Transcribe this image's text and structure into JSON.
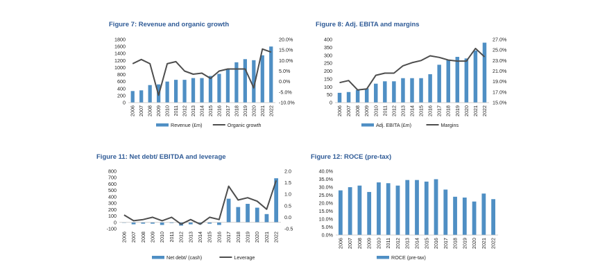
{
  "colors": {
    "bar": "#4f8fc4",
    "line": "#4d4d4d",
    "title": "#2e5a96",
    "axis": "#bfbfbf"
  },
  "chart_data": [
    {
      "type": "bar",
      "title": "Figure 7: Revenue and organic growth",
      "categories": [
        "2006",
        "2007",
        "2008",
        "2009",
        "2010",
        "2011",
        "2012",
        "2013",
        "2014",
        "2015",
        "2016",
        "2017",
        "2018",
        "2019",
        "2020",
        "2021",
        "2022"
      ],
      "series": [
        {
          "name": "Revenue (£m)",
          "type": "bar",
          "axis": "left",
          "values": [
            330,
            350,
            500,
            520,
            600,
            650,
            650,
            700,
            700,
            760,
            820,
            960,
            1150,
            1240,
            1210,
            1350,
            1600
          ]
        },
        {
          "name": "Organic growth",
          "type": "line",
          "axis": "right",
          "values": [
            8.5,
            10.5,
            8.5,
            -6.5,
            8.5,
            9.5,
            5.0,
            3.5,
            4.0,
            1.5,
            5.0,
            6.0,
            6.0,
            6.0,
            -3.0,
            15.5,
            14.0
          ]
        }
      ],
      "left_axis": {
        "ylim": [
          0,
          1800
        ],
        "ticks": [
          "0",
          "200",
          "400",
          "600",
          "800",
          "1000",
          "1200",
          "1400",
          "1600",
          "1800"
        ]
      },
      "right_axis": {
        "ylim": [
          -10,
          20
        ],
        "ticks": [
          "-10.0%",
          "-5.0%",
          "0.0%",
          "5.0%",
          "10.0%",
          "15.0%",
          "20.0%"
        ]
      },
      "legend": "bottom"
    },
    {
      "type": "bar",
      "title": "Figure 8: Adj. EBITA and margins",
      "categories": [
        "2006",
        "2007",
        "2008",
        "2009",
        "2010",
        "2011",
        "2012",
        "2013",
        "2014",
        "2015",
        "2016",
        "2017",
        "2018",
        "2019",
        "2020",
        "2021",
        "2022"
      ],
      "series": [
        {
          "name": "Adj. EBITA (£m)",
          "type": "bar",
          "axis": "left",
          "values": [
            62,
            67,
            80,
            90,
            120,
            135,
            135,
            155,
            155,
            155,
            180,
            240,
            270,
            290,
            280,
            330,
            380
          ]
        },
        {
          "name": "Margins",
          "type": "line",
          "axis": "right",
          "values": [
            18.8,
            19.2,
            17.4,
            17.6,
            20.2,
            20.6,
            20.6,
            22.0,
            22.6,
            23.0,
            23.9,
            23.6,
            23.1,
            22.9,
            22.9,
            25.3,
            23.7
          ]
        }
      ],
      "left_axis": {
        "ylim": [
          0,
          400
        ],
        "ticks": [
          "0",
          "50",
          "100",
          "150",
          "200",
          "250",
          "300",
          "350",
          "400"
        ]
      },
      "right_axis": {
        "ylim": [
          15,
          27
        ],
        "ticks": [
          "15.0%",
          "17.0%",
          "19.0%",
          "21.0%",
          "23.0%",
          "25.0%",
          "27.0%"
        ]
      },
      "legend": "bottom"
    },
    {
      "type": "bar",
      "title": "Figure 11: Net debt/ EBITDA and leverage",
      "categories": [
        "2006",
        "2007",
        "2008",
        "2009",
        "2010",
        "2011",
        "2012",
        "2013",
        "2014",
        "2015",
        "2016",
        "2017",
        "2018",
        "2019",
        "2020",
        "2021",
        "2022"
      ],
      "series": [
        {
          "name": "Net debt/ (cash)",
          "type": "bar",
          "axis": "left",
          "values": [
            0,
            -30,
            -20,
            -20,
            -40,
            -10,
            -50,
            -30,
            -30,
            -20,
            -40,
            370,
            240,
            290,
            230,
            130,
            690
          ]
        },
        {
          "name": "Leverage",
          "type": "line",
          "axis": "right",
          "values": [
            0.1,
            -0.15,
            -0.1,
            0.0,
            -0.15,
            0.0,
            -0.3,
            -0.1,
            -0.3,
            0.0,
            -0.1,
            1.35,
            0.75,
            0.85,
            0.7,
            0.35,
            1.6
          ]
        }
      ],
      "left_axis": {
        "ylim": [
          -100,
          800
        ],
        "ticks": [
          "-100",
          "0",
          "100",
          "200",
          "300",
          "400",
          "500",
          "600",
          "700",
          "800"
        ]
      },
      "right_axis": {
        "ylim": [
          -0.5,
          2.0
        ],
        "ticks": [
          "-0.5",
          "0.0",
          "0.5",
          "1.0",
          "1.5",
          "2.0"
        ]
      },
      "legend": "bottom"
    },
    {
      "type": "bar",
      "title": "Figure 12: ROCE (pre-tax)",
      "categories": [
        "2006",
        "2007",
        "2008",
        "2009",
        "2010",
        "2011",
        "2012",
        "2013",
        "2014",
        "2015",
        "2016",
        "2017",
        "2018",
        "2019",
        "2020",
        "2021",
        "2022"
      ],
      "series": [
        {
          "name": "ROCE (pre-tax)",
          "type": "bar",
          "axis": "left",
          "values": [
            28.0,
            30.0,
            31.0,
            27.0,
            33.0,
            32.5,
            31.0,
            34.5,
            34.5,
            33.5,
            35.0,
            28.5,
            24.0,
            23.5,
            21.0,
            26.0,
            22.5
          ]
        }
      ],
      "left_axis": {
        "ylim": [
          0,
          40
        ],
        "ticks": [
          "0.0%",
          "5.0%",
          "10.0%",
          "15.0%",
          "20.0%",
          "25.0%",
          "30.0%",
          "35.0%",
          "40.0%"
        ]
      },
      "legend": "bottom"
    }
  ]
}
